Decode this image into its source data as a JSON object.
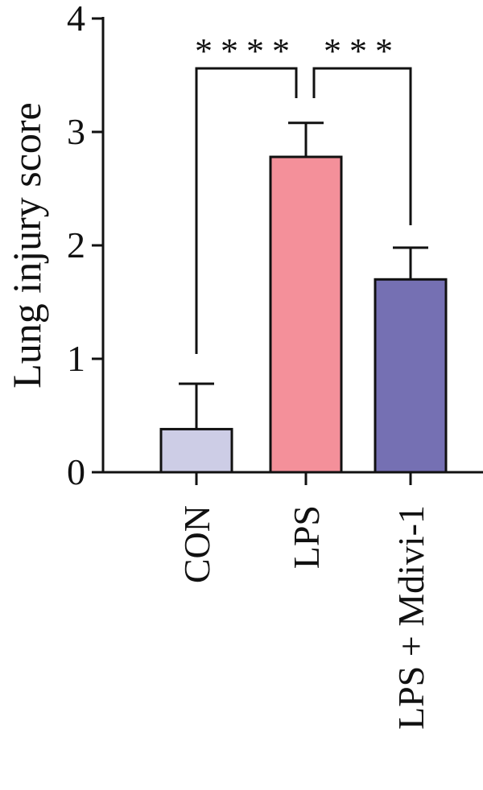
{
  "chart_data": {
    "type": "bar",
    "ylabel": "Lung injury score",
    "xlabel": "",
    "ylim": [
      0,
      4
    ],
    "y_ticks": [
      0,
      1,
      2,
      3,
      4
    ],
    "y_tick_labels": [
      "0",
      "1",
      "2",
      "3",
      "4"
    ],
    "categories": [
      "CON",
      "LPS",
      "LPS + Mdivi-1"
    ],
    "values": [
      0.38,
      2.78,
      1.7
    ],
    "errors": [
      0.4,
      0.3,
      0.28
    ],
    "bar_colors": [
      "#cdcde6",
      "#f4909a",
      "#7570b3"
    ],
    "significance": [
      {
        "from": 0,
        "to": 1,
        "label": "****"
      },
      {
        "from": 1,
        "to": 2,
        "label": "***"
      }
    ]
  }
}
